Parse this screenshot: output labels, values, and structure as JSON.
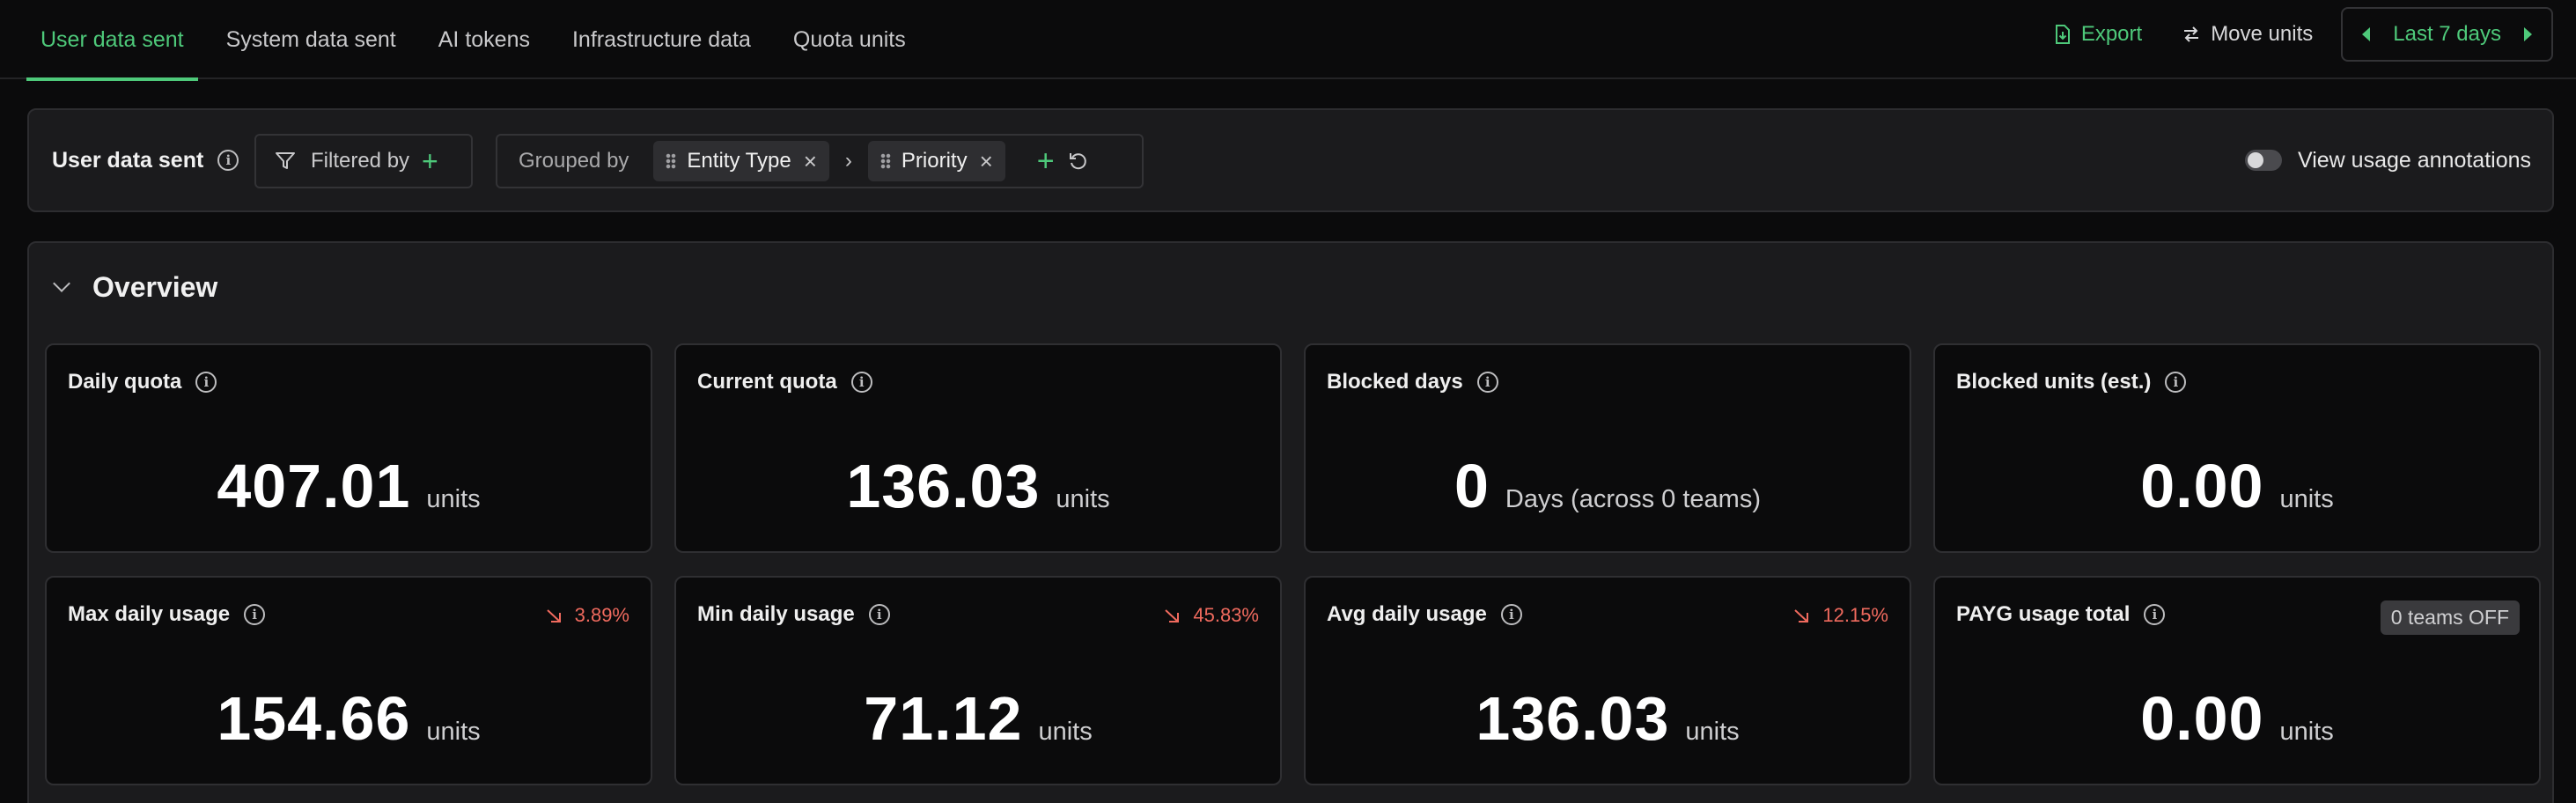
{
  "tabs": [
    {
      "label": "User data sent",
      "active": true
    },
    {
      "label": "System data sent",
      "active": false
    },
    {
      "label": "AI tokens",
      "active": false
    },
    {
      "label": "Infrastructure data",
      "active": false
    },
    {
      "label": "Quota units",
      "active": false
    }
  ],
  "toolbar": {
    "export_label": "Export",
    "move_units_label": "Move units",
    "range_label": "Last 7 days"
  },
  "filter": {
    "title": "User data sent",
    "filtered_by_label": "Filtered by",
    "grouped_by_label": "Grouped by",
    "groups": [
      "Entity Type",
      "Priority"
    ],
    "annotations_label": "View usage annotations",
    "annotations_enabled": false
  },
  "overview": {
    "title": "Overview",
    "cards": [
      {
        "label": "Daily quota",
        "value": "407.01",
        "unit": "units"
      },
      {
        "label": "Current quota",
        "value": "136.03",
        "unit": "units"
      },
      {
        "label": "Blocked days",
        "value": "0",
        "unit": "Days (across 0 teams)"
      },
      {
        "label": "Blocked units (est.)",
        "value": "0.00",
        "unit": "units"
      },
      {
        "label": "Max daily usage",
        "value": "154.66",
        "unit": "units",
        "trend": "3.89%"
      },
      {
        "label": "Min daily usage",
        "value": "71.12",
        "unit": "units",
        "trend": "45.83%"
      },
      {
        "label": "Avg daily usage",
        "value": "136.03",
        "unit": "units",
        "trend": "12.15%"
      },
      {
        "label": "PAYG usage total",
        "value": "0.00",
        "unit": "units",
        "badge": "0 teams OFF"
      }
    ]
  },
  "colors": {
    "accent": "#4ec97a",
    "trend_down": "#f06a5e",
    "background": "#0b0b0c",
    "panel": "#1b1b1d"
  }
}
